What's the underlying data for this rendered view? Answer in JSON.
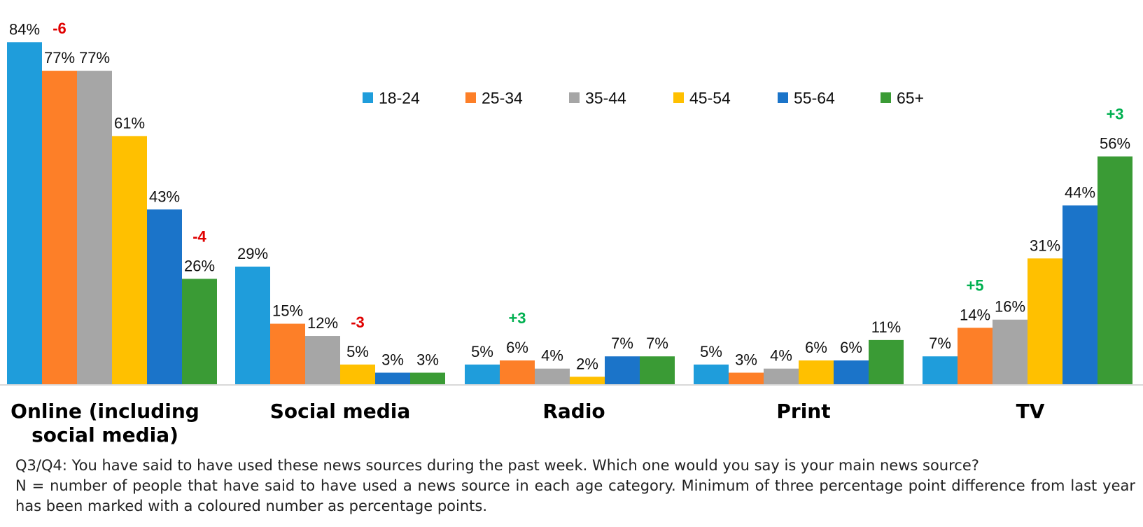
{
  "chart_data": {
    "type": "bar",
    "categories": [
      "Online (including social media)",
      "Social media",
      "Radio",
      "Print",
      "TV"
    ],
    "series": [
      {
        "name": "18-24",
        "color": "#1f9ddb",
        "values": [
          84,
          29,
          5,
          5,
          7
        ]
      },
      {
        "name": "25-34",
        "color": "#fd7f28",
        "values": [
          77,
          15,
          6,
          3,
          14
        ]
      },
      {
        "name": "35-44",
        "color": "#a6a6a6",
        "values": [
          77,
          12,
          4,
          4,
          16
        ]
      },
      {
        "name": "45-54",
        "color": "#ffc000",
        "values": [
          61,
          5,
          2,
          6,
          31
        ]
      },
      {
        "name": "55-64",
        "color": "#1b74c9",
        "values": [
          43,
          3,
          7,
          6,
          44
        ]
      },
      {
        "name": "65+",
        "color": "#3a9b35",
        "values": [
          26,
          3,
          7,
          11,
          56
        ]
      }
    ],
    "data_labels": [
      [
        "84%",
        "77%",
        "77%",
        "61%",
        "43%",
        "26%"
      ],
      [
        "29%",
        "15%",
        "12%",
        "5%",
        "3%",
        "3%"
      ],
      [
        "5%",
        "6%",
        "4%",
        "2%",
        "7%",
        "7%"
      ],
      [
        "5%",
        "3%",
        "4%",
        "6%",
        "6%",
        "11%"
      ],
      [
        "7%",
        "14%",
        "16%",
        "31%",
        "44%",
        "56%"
      ]
    ],
    "changes": [
      {
        "category": 0,
        "series": 1,
        "text": "-6",
        "color": "#e00000"
      },
      {
        "category": 0,
        "series": 5,
        "text": "-4",
        "color": "#e00000"
      },
      {
        "category": 1,
        "series": 3,
        "text": "-3",
        "color": "#e00000"
      },
      {
        "category": 2,
        "series": 1,
        "text": "+3",
        "color": "#00b050"
      },
      {
        "category": 4,
        "series": 1,
        "text": "+5",
        "color": "#00b050"
      },
      {
        "category": 4,
        "series": 5,
        "text": "+3",
        "color": "#00b050"
      }
    ],
    "ylim": [
      0,
      100
    ],
    "grid": false,
    "legend": "top-center"
  },
  "footnote": {
    "line1": "Q3/Q4: You have said to have used these news sources during the past week. Which one would you say is your main news source?",
    "line2": "N = number of people that have said to have used a news source in each age category. Minimum of three percentage point difference from last year has been marked with a coloured number as percentage points."
  }
}
